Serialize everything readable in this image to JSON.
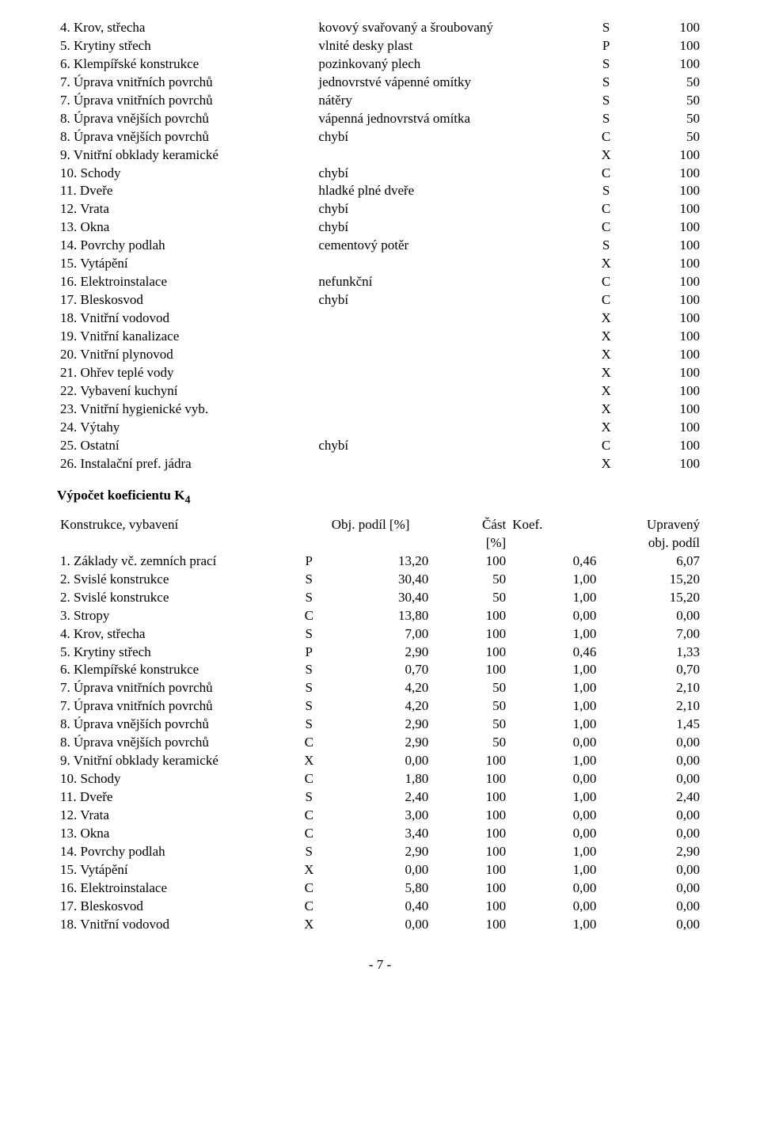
{
  "colors": {
    "background": "#ffffff",
    "text": "#000000"
  },
  "table1": {
    "rows": [
      {
        "label": "4. Krov, střecha",
        "desc": "kovový svařovaný a šroubovaný",
        "code": "S",
        "val": "100"
      },
      {
        "label": "5. Krytiny střech",
        "desc": "vlnité desky plast",
        "code": "P",
        "val": "100"
      },
      {
        "label": "6. Klempířské konstrukce",
        "desc": "pozinkovaný plech",
        "code": "S",
        "val": "100"
      },
      {
        "label": "7. Úprava vnitřních povrchů",
        "desc": "jednovrstvé vápenné omítky",
        "code": "S",
        "val": "50"
      },
      {
        "label": "7. Úprava vnitřních povrchů",
        "desc": "nátěry",
        "code": "S",
        "val": "50"
      },
      {
        "label": "8. Úprava vnějších povrchů",
        "desc": "vápenná jednovrstvá omítka",
        "code": "S",
        "val": "50"
      },
      {
        "label": "8. Úprava vnějších povrchů",
        "desc": "chybí",
        "code": "C",
        "val": "50"
      },
      {
        "label": "9. Vnitřní obklady keramické",
        "desc": "",
        "code": "X",
        "val": "100"
      },
      {
        "label": "10. Schody",
        "desc": "chybí",
        "code": "C",
        "val": "100"
      },
      {
        "label": "11. Dveře",
        "desc": "hladké plné dveře",
        "code": "S",
        "val": "100"
      },
      {
        "label": "12. Vrata",
        "desc": "chybí",
        "code": "C",
        "val": "100"
      },
      {
        "label": "13. Okna",
        "desc": "chybí",
        "code": "C",
        "val": "100"
      },
      {
        "label": "14. Povrchy podlah",
        "desc": "cementový potěr",
        "code": "S",
        "val": "100"
      },
      {
        "label": "15. Vytápění",
        "desc": "",
        "code": "X",
        "val": "100"
      },
      {
        "label": "16. Elektroinstalace",
        "desc": "nefunkční",
        "code": "C",
        "val": "100"
      },
      {
        "label": "17. Bleskosvod",
        "desc": "chybí",
        "code": "C",
        "val": "100"
      },
      {
        "label": "18. Vnitřní vodovod",
        "desc": "",
        "code": "X",
        "val": "100"
      },
      {
        "label": "19. Vnitřní kanalizace",
        "desc": "",
        "code": "X",
        "val": "100"
      },
      {
        "label": "20. Vnitřní plynovod",
        "desc": "",
        "code": "X",
        "val": "100"
      },
      {
        "label": "21. Ohřev teplé vody",
        "desc": "",
        "code": "X",
        "val": "100"
      },
      {
        "label": "22. Vybavení kuchyní",
        "desc": "",
        "code": "X",
        "val": "100"
      },
      {
        "label": "23. Vnitřní hygienické vyb.",
        "desc": "",
        "code": "X",
        "val": "100"
      },
      {
        "label": "24. Výtahy",
        "desc": "",
        "code": "X",
        "val": "100"
      },
      {
        "label": "25. Ostatní",
        "desc": "chybí",
        "code": "C",
        "val": "100"
      },
      {
        "label": "26. Instalační pref. jádra",
        "desc": "",
        "code": "X",
        "val": "100"
      }
    ]
  },
  "section_heading": "Výpočet koeficientu K",
  "section_heading_sub": "4",
  "table2": {
    "header": {
      "c1": "Konstrukce, vybavení",
      "c3": "Obj. podíl [%]",
      "c4_top": "Část",
      "c4_bot": "[%]",
      "c5": "Koef.",
      "c6_top": "Upravený",
      "c6_bot": "obj. podíl"
    },
    "rows": [
      {
        "label": "1. Základy vč. zemních prací",
        "code": "P",
        "obj": "13,20",
        "cast": "100",
        "koef": "0,46",
        "upr": "6,07"
      },
      {
        "label": "2. Svislé konstrukce",
        "code": "S",
        "obj": "30,40",
        "cast": "50",
        "koef": "1,00",
        "upr": "15,20"
      },
      {
        "label": "2. Svislé konstrukce",
        "code": "S",
        "obj": "30,40",
        "cast": "50",
        "koef": "1,00",
        "upr": "15,20"
      },
      {
        "label": "3. Stropy",
        "code": "C",
        "obj": "13,80",
        "cast": "100",
        "koef": "0,00",
        "upr": "0,00"
      },
      {
        "label": "4. Krov, střecha",
        "code": "S",
        "obj": "7,00",
        "cast": "100",
        "koef": "1,00",
        "upr": "7,00"
      },
      {
        "label": "5. Krytiny střech",
        "code": "P",
        "obj": "2,90",
        "cast": "100",
        "koef": "0,46",
        "upr": "1,33"
      },
      {
        "label": "6. Klempířské konstrukce",
        "code": "S",
        "obj": "0,70",
        "cast": "100",
        "koef": "1,00",
        "upr": "0,70"
      },
      {
        "label": "7. Úprava vnitřních povrchů",
        "code": "S",
        "obj": "4,20",
        "cast": "50",
        "koef": "1,00",
        "upr": "2,10"
      },
      {
        "label": "7. Úprava vnitřních povrchů",
        "code": "S",
        "obj": "4,20",
        "cast": "50",
        "koef": "1,00",
        "upr": "2,10"
      },
      {
        "label": "8. Úprava vnějších povrchů",
        "code": "S",
        "obj": "2,90",
        "cast": "50",
        "koef": "1,00",
        "upr": "1,45"
      },
      {
        "label": "8. Úprava vnějších povrchů",
        "code": "C",
        "obj": "2,90",
        "cast": "50",
        "koef": "0,00",
        "upr": "0,00"
      },
      {
        "label": "9. Vnitřní obklady keramické",
        "code": "X",
        "obj": "0,00",
        "cast": "100",
        "koef": "1,00",
        "upr": "0,00"
      },
      {
        "label": "10. Schody",
        "code": "C",
        "obj": "1,80",
        "cast": "100",
        "koef": "0,00",
        "upr": "0,00"
      },
      {
        "label": "11. Dveře",
        "code": "S",
        "obj": "2,40",
        "cast": "100",
        "koef": "1,00",
        "upr": "2,40"
      },
      {
        "label": "12. Vrata",
        "code": "C",
        "obj": "3,00",
        "cast": "100",
        "koef": "0,00",
        "upr": "0,00"
      },
      {
        "label": "13. Okna",
        "code": "C",
        "obj": "3,40",
        "cast": "100",
        "koef": "0,00",
        "upr": "0,00"
      },
      {
        "label": "14. Povrchy podlah",
        "code": "S",
        "obj": "2,90",
        "cast": "100",
        "koef": "1,00",
        "upr": "2,90"
      },
      {
        "label": "15. Vytápění",
        "code": "X",
        "obj": "0,00",
        "cast": "100",
        "koef": "1,00",
        "upr": "0,00"
      },
      {
        "label": "16. Elektroinstalace",
        "code": "C",
        "obj": "5,80",
        "cast": "100",
        "koef": "0,00",
        "upr": "0,00"
      },
      {
        "label": "17. Bleskosvod",
        "code": "C",
        "obj": "0,40",
        "cast": "100",
        "koef": "0,00",
        "upr": "0,00"
      },
      {
        "label": "18. Vnitřní vodovod",
        "code": "X",
        "obj": "0,00",
        "cast": "100",
        "koef": "1,00",
        "upr": "0,00"
      }
    ]
  },
  "footer": "- 7 -"
}
